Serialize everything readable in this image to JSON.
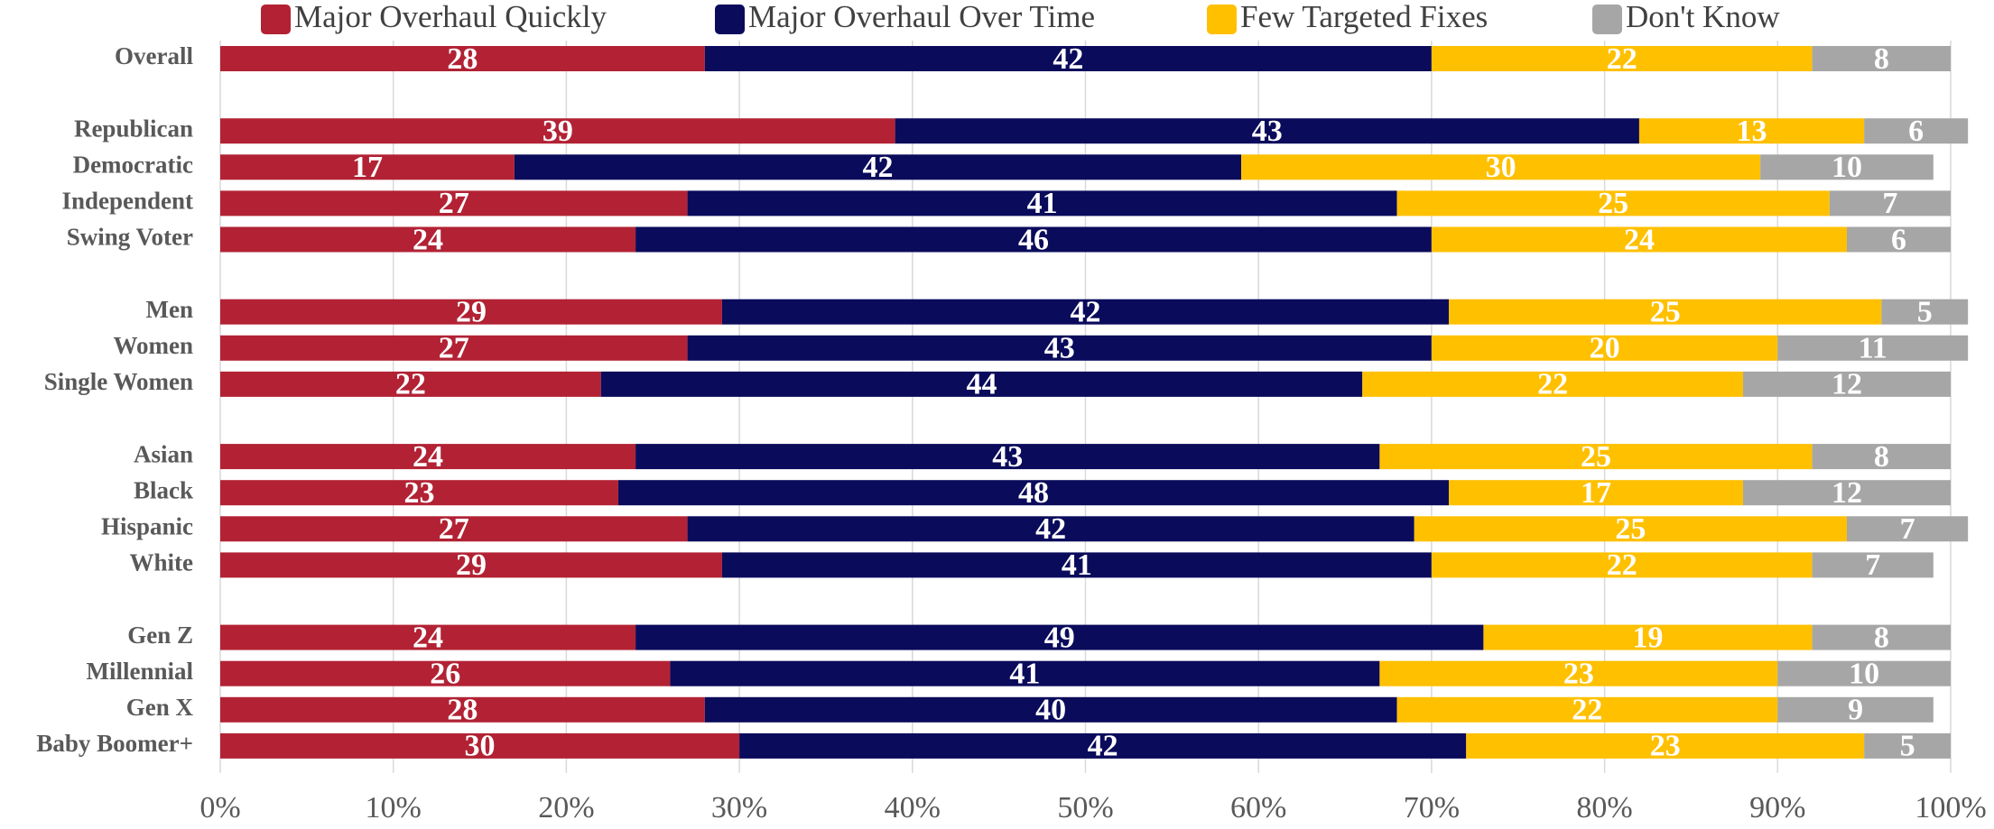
{
  "chart_data": {
    "type": "stacked-bar-horizontal",
    "categories": [
      "Overall",
      null,
      "Republican",
      "Democratic",
      "Independent",
      "Swing Voter",
      null,
      "Men",
      "Women",
      "Single Women",
      null,
      "Asian",
      "Black",
      "Hispanic",
      "White",
      null,
      "Gen Z",
      "Millennial",
      "Gen X",
      "Baby Boomer+"
    ],
    "series": [
      {
        "name": "Major Overhaul Quickly",
        "color": "#b22234",
        "values": [
          28,
          null,
          39,
          17,
          27,
          24,
          null,
          29,
          27,
          22,
          null,
          24,
          23,
          27,
          29,
          null,
          24,
          26,
          28,
          30
        ]
      },
      {
        "name": "Major Overhaul Over Time",
        "color": "#0b0b5c",
        "values": [
          42,
          null,
          43,
          42,
          41,
          46,
          null,
          42,
          43,
          44,
          null,
          43,
          48,
          42,
          41,
          null,
          49,
          41,
          40,
          42
        ]
      },
      {
        "name": "Few Targeted Fixes",
        "color": "#ffc000",
        "values": [
          22,
          null,
          13,
          30,
          25,
          24,
          null,
          25,
          20,
          22,
          null,
          25,
          17,
          25,
          22,
          null,
          19,
          23,
          22,
          23
        ]
      },
      {
        "name": "Don't Know",
        "color": "#a6a6a6",
        "values": [
          8,
          null,
          6,
          10,
          7,
          6,
          null,
          5,
          11,
          12,
          null,
          8,
          12,
          7,
          7,
          null,
          8,
          10,
          9,
          5
        ]
      }
    ],
    "xlim": [
      0,
      100
    ],
    "xticks": [
      {
        "value": 0,
        "label": "0%"
      },
      {
        "value": 10,
        "label": "10%"
      },
      {
        "value": 20,
        "label": "20%"
      },
      {
        "value": 30,
        "label": "30%"
      },
      {
        "value": 40,
        "label": "40%"
      },
      {
        "value": 50,
        "label": "50%"
      },
      {
        "value": 60,
        "label": "60%"
      },
      {
        "value": 70,
        "label": "70%"
      },
      {
        "value": 80,
        "label": "80%"
      },
      {
        "value": 90,
        "label": "90%"
      },
      {
        "value": 100,
        "label": "100%"
      }
    ],
    "grid": true,
    "legend": "top"
  }
}
